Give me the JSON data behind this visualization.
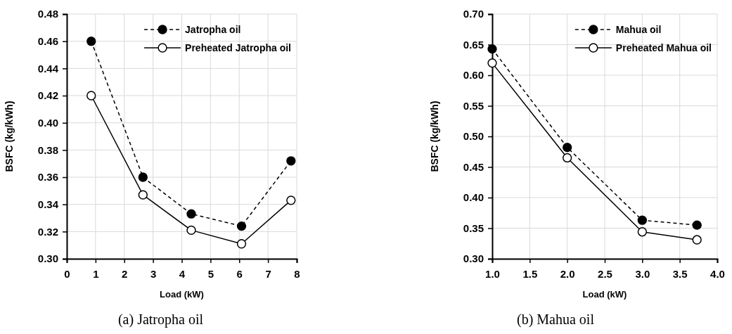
{
  "chart_data": [
    {
      "type": "line",
      "xlabel": "Load (kW)",
      "ylabel": "BSFC (kg/kWh)",
      "annotations": [
        "(a) Jatropha oil"
      ],
      "xlim": [
        0,
        8
      ],
      "xticks": [
        0,
        1,
        2,
        3,
        4,
        5,
        6,
        7,
        8
      ],
      "ylim": [
        0.3,
        0.48
      ],
      "yticks": [
        {
          "value": 0.3,
          "label": "0.30"
        },
        {
          "value": 0.32,
          "label": "0.32"
        },
        {
          "value": 0.34,
          "label": "0.34"
        },
        {
          "value": 0.36,
          "label": "0.36"
        },
        {
          "value": 0.38,
          "label": "0.38"
        },
        {
          "value": 0.4,
          "label": "0.40"
        },
        {
          "value": 0.42,
          "label": "0.42"
        },
        {
          "value": 0.44,
          "label": "0.44"
        },
        {
          "value": 0.46,
          "label": "0.46"
        },
        {
          "value": 0.48,
          "label": "0.48"
        }
      ],
      "grid": true,
      "legend": "top right",
      "marker": "circle",
      "series": [
        {
          "name": "Jatropha oil",
          "color": "#000000",
          "line_style": "dashed",
          "x": [
            0.85,
            2.65,
            4.33,
            6.08,
            7.8
          ],
          "values": [
            0.46,
            0.36,
            0.333,
            0.324,
            0.372
          ]
        },
        {
          "name": "Preheated Jatropha oil",
          "color": "#000000",
          "line_style": "solid",
          "x": [
            0.85,
            2.65,
            4.33,
            6.08,
            7.8
          ],
          "values": [
            0.42,
            0.347,
            0.321,
            0.311,
            0.343
          ]
        }
      ]
    },
    {
      "type": "line",
      "xlabel": "Load (kW)",
      "ylabel": "BSFC (kg/kWh)",
      "annotations": [
        "(b) Mahua oil"
      ],
      "xlim": [
        1,
        4
      ],
      "xticks": [
        {
          "value": 1,
          "label": "1.0"
        },
        {
          "value": 1.5,
          "label": "1.5"
        },
        {
          "value": 2,
          "label": "2.0"
        },
        {
          "value": 2.5,
          "label": "2.5"
        },
        {
          "value": 3,
          "label": "3.0"
        },
        {
          "value": 3.5,
          "label": "3.5"
        },
        {
          "value": 4,
          "label": "4.0"
        }
      ],
      "ylim": [
        0.3,
        0.7
      ],
      "yticks": [
        {
          "value": 0.3,
          "label": "0.30"
        },
        {
          "value": 0.35,
          "label": "0.35"
        },
        {
          "value": 0.4,
          "label": "0.40"
        },
        {
          "value": 0.45,
          "label": "0.45"
        },
        {
          "value": 0.5,
          "label": "0.50"
        },
        {
          "value": 0.55,
          "label": "0.55"
        },
        {
          "value": 0.6,
          "label": "0.60"
        },
        {
          "value": 0.65,
          "label": "0.65"
        },
        {
          "value": 0.7,
          "label": "0.70"
        }
      ],
      "grid": true,
      "legend": "top right",
      "marker": "circle",
      "series": [
        {
          "name": "Mahua oil",
          "color": "#000000",
          "line_style": "dashed",
          "x": [
            1.0,
            2.0,
            3.0,
            3.73
          ],
          "values": [
            0.643,
            0.482,
            0.363,
            0.355
          ]
        },
        {
          "name": "Preheated Mahua oil",
          "color": "#000000",
          "line_style": "solid",
          "x": [
            1.0,
            2.0,
            3.0,
            3.73
          ],
          "values": [
            0.62,
            0.465,
            0.344,
            0.331
          ]
        }
      ]
    }
  ]
}
